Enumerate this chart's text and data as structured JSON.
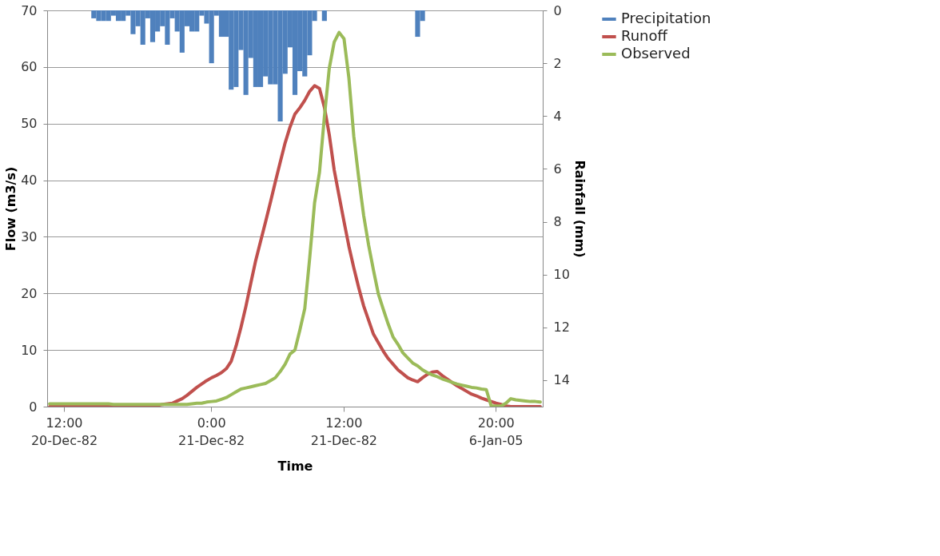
{
  "chart_data": {
    "type": "line",
    "xlabel": "Time",
    "ylabel": "Flow (m3/s)",
    "y2label": "Rainfall (mm)",
    "categories": [
      null,
      null,
      null,
      "12:00\n20-Dec-82",
      null,
      null,
      null,
      null,
      null,
      null,
      null,
      null,
      null,
      null,
      null,
      null,
      null,
      null,
      null,
      null,
      null,
      null,
      null,
      null,
      null,
      null,
      null,
      null,
      null,
      null,
      null,
      null,
      null,
      "0:00\n21-Dec-82",
      null,
      null,
      null,
      null,
      null,
      null,
      null,
      null,
      null,
      null,
      null,
      null,
      null,
      null,
      null,
      null,
      null,
      null,
      null,
      null,
      null,
      null,
      null,
      null,
      null,
      null,
      "12:00\n21-Dec-82",
      null,
      null,
      null,
      null,
      null,
      null,
      null,
      null,
      null,
      null,
      null,
      null,
      null,
      null,
      null,
      null,
      null,
      null,
      null,
      null,
      null,
      null,
      null,
      null,
      null,
      null,
      null,
      null,
      null,
      null,
      "20:00\n6-Jan-05",
      null,
      null,
      null,
      null,
      null,
      null,
      null,
      null,
      null
    ],
    "ylim": [
      0,
      70
    ],
    "yticks": [
      0,
      10,
      20,
      30,
      40,
      50,
      60,
      70
    ],
    "y2lim": [
      15,
      0
    ],
    "y2ticks": [
      0,
      2,
      4,
      6,
      8,
      10,
      12,
      14
    ],
    "grid": "y",
    "legend": "right",
    "line_style": "solid",
    "marker": "none",
    "series": [
      {
        "name": "Precipitation",
        "type": "bar",
        "axis": "y2",
        "color": "#4f81bd",
        "values": [
          null,
          null,
          null,
          null,
          null,
          null,
          null,
          null,
          null,
          0.3,
          0.4,
          0.4,
          0.4,
          0.2,
          0.4,
          0.4,
          0.2,
          0.9,
          0.6,
          1.3,
          0.3,
          1.2,
          0.8,
          0.6,
          1.3,
          0.3,
          0.8,
          1.6,
          0.6,
          0.8,
          0.8,
          0.2,
          0.5,
          2.0,
          0.2,
          1.0,
          1.0,
          3.0,
          2.9,
          1.5,
          3.2,
          1.8,
          2.9,
          2.9,
          2.5,
          2.8,
          2.8,
          4.2,
          2.4,
          1.4,
          3.2,
          2.3,
          2.5,
          1.7,
          0.4,
          null,
          0.4,
          null,
          null,
          null,
          null,
          null,
          null,
          null,
          null,
          null,
          null,
          null,
          null,
          null,
          null,
          null,
          null,
          null,
          null,
          1.0,
          0.4,
          null,
          null,
          null,
          null,
          null,
          null,
          null,
          null,
          null,
          null,
          null,
          null,
          null,
          null,
          null,
          null,
          null,
          null,
          null,
          null,
          null,
          null,
          null,
          null
        ]
      },
      {
        "name": "Runoff",
        "color": "#c0504d",
        "values": [
          0,
          0,
          0,
          0,
          0,
          0,
          0,
          0,
          0,
          0,
          0,
          0,
          0,
          0,
          0,
          0,
          0,
          0,
          0,
          0,
          0,
          0.1,
          0.2,
          0.4,
          0.5,
          0.6,
          1.0,
          1.4,
          2.0,
          2.7,
          3.4,
          4.0,
          4.6,
          5.1,
          5.5,
          6.0,
          6.7,
          8.0,
          10.7,
          14.0,
          17.7,
          21.8,
          25.8,
          29.2,
          32.6,
          36.1,
          39.7,
          43.2,
          46.6,
          49.4,
          51.7,
          52.8,
          54.1,
          55.7,
          56.7,
          56.2,
          52.9,
          48,
          41.8,
          37.2,
          32.7,
          28.3,
          24.5,
          21,
          17.8,
          15.3,
          12.8,
          11.3,
          9.8,
          8.5,
          7.5,
          6.5,
          5.8,
          5.1,
          4.7,
          4.4,
          5.1,
          5.7,
          6.1,
          6.2,
          5.5,
          4.9,
          4.3,
          3.7,
          3.2,
          2.7,
          2.2,
          1.9,
          1.5,
          1.2,
          0.9,
          0.6,
          0.4,
          0.1,
          0,
          0,
          0,
          0,
          0,
          0,
          0
        ]
      },
      {
        "name": "Observed",
        "color": "#9bbb59",
        "values": [
          0.5,
          0.5,
          0.5,
          0.5,
          0.5,
          0.5,
          0.5,
          0.5,
          0.5,
          0.5,
          0.5,
          0.5,
          0.5,
          0.4,
          0.4,
          0.4,
          0.4,
          0.4,
          0.4,
          0.4,
          0.4,
          0.4,
          0.4,
          0.4,
          0.4,
          0.4,
          0.4,
          0.4,
          0.4,
          0.5,
          0.6,
          0.6,
          0.8,
          0.9,
          1.0,
          1.3,
          1.6,
          2.1,
          2.6,
          3.1,
          3.3,
          3.5,
          3.7,
          3.9,
          4.1,
          4.6,
          5.1,
          6.2,
          7.5,
          9.3,
          10,
          13.5,
          17.3,
          26.2,
          36,
          41.4,
          51.2,
          59.8,
          64.4,
          66.1,
          65,
          58,
          47.7,
          40.4,
          33.8,
          28.6,
          24.1,
          19.9,
          17.2,
          14.6,
          12.3,
          11.0,
          9.5,
          8.6,
          7.7,
          7.2,
          6.5,
          6.0,
          5.6,
          5.3,
          4.9,
          4.6,
          4.3,
          4.0,
          3.8,
          3.6,
          3.4,
          3.3,
          3.1,
          3.0,
          0.1,
          0.1,
          0.1,
          0.6,
          1.4,
          1.2,
          1.1,
          1.0,
          0.9,
          0.9,
          0.8
        ]
      }
    ]
  }
}
